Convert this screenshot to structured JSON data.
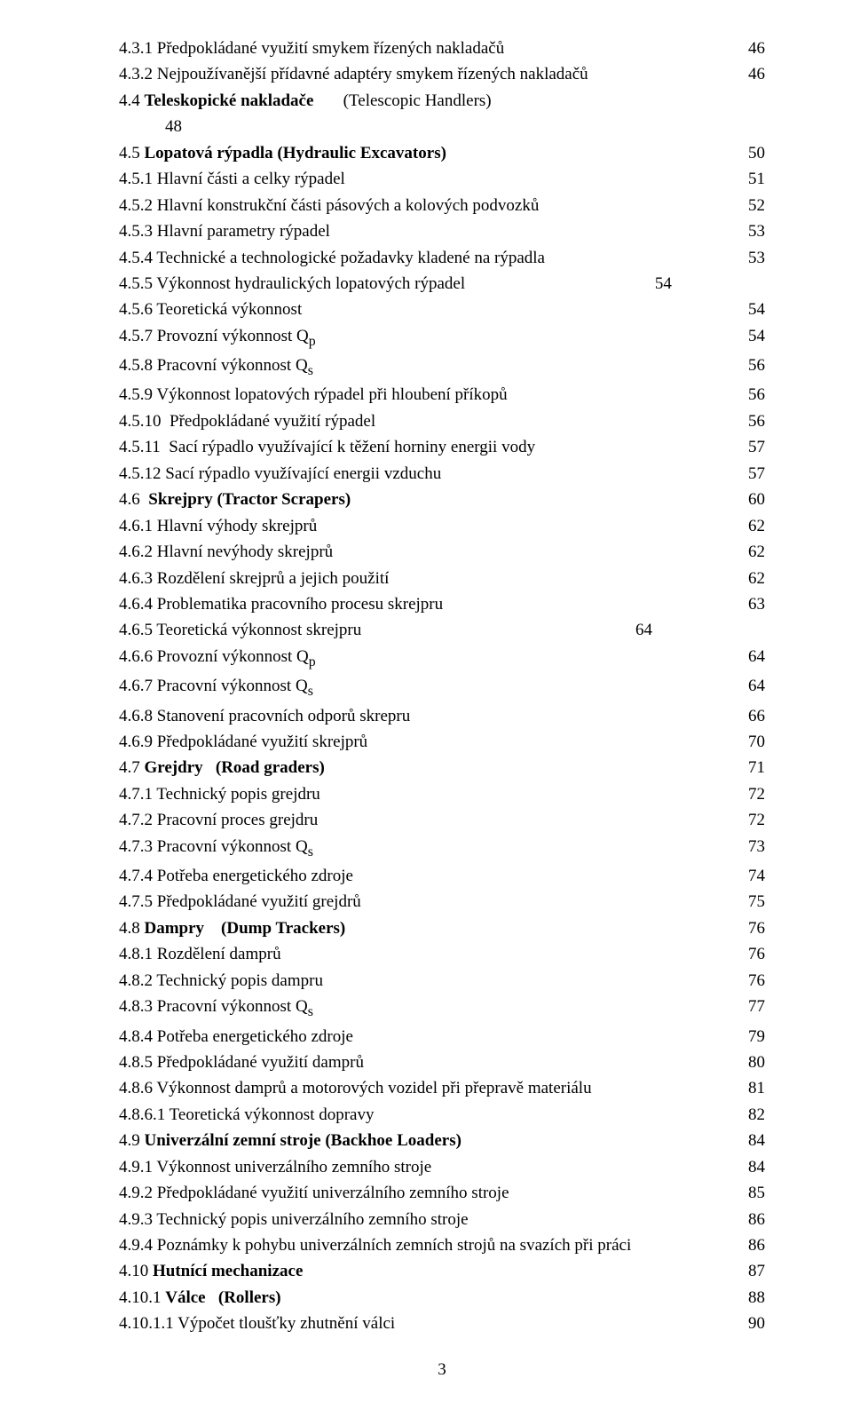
{
  "page_number": "3",
  "toc": [
    {
      "label": "4.3.1 Předpokládané využití smykem řízených nakladačů",
      "page": "46",
      "bold": false
    },
    {
      "label": "4.3.2 Nejpoužívanější přídavné adaptéry smykem řízených nakladačů",
      "page": "46",
      "bold": false
    },
    {
      "label": "4.4 Teleskopické nakladače       (Telescopic Handlers)",
      "page": "",
      "bold": false,
      "boldPart": "Teleskopické nakladače"
    },
    {
      "label": "48",
      "page": "",
      "bold": false,
      "indent": true,
      "noPage": true
    },
    {
      "label": "4.5 Lopatová rýpadla (Hydraulic Excavators)",
      "page": "50",
      "bold": false,
      "boldPart": "Lopatová rýpadla (Hydraulic Excavators)"
    },
    {
      "label": "4.5.1 Hlavní části a celky rýpadel",
      "page": "51",
      "bold": false
    },
    {
      "label": "4.5.2 Hlavní konstrukční části pásových a kolových podvozků",
      "page": "52",
      "bold": false
    },
    {
      "label": "4.5.3 Hlavní parametry rýpadel",
      "page": "53",
      "bold": false
    },
    {
      "label": "4.5.4 Technické a technologické požadavky kladené na rýpadla",
      "page": "53",
      "bold": false
    },
    {
      "label": "4.5.5 Výkonnost hydraulických lopatových rýpadel                                             54",
      "page": "",
      "bold": false,
      "noPage": true
    },
    {
      "label": "4.5.6 Teoretická výkonnost",
      "page": "54",
      "bold": false
    },
    {
      "label": "4.5.7 Provozní výkonnost Qp",
      "page": "54",
      "bold": false,
      "sub": "p"
    },
    {
      "label": "4.5.8 Pracovní výkonnost Qs",
      "page": "56",
      "bold": false,
      "sub": "s"
    },
    {
      "label": "4.5.9 Výkonnost lopatových rýpadel při hloubení příkopů",
      "page": "56",
      "bold": false
    },
    {
      "label": "4.5.10  Předpokládané využití rýpadel",
      "page": "56",
      "bold": false
    },
    {
      "label": "4.5.11  Sací rýpadlo využívající k těžení horniny energii vody",
      "page": "57",
      "bold": false
    },
    {
      "label": "4.5.12 Sací rýpadlo využívající energii vzduchu",
      "page": "57",
      "bold": false
    },
    {
      "label": "4.6  Skrejpry (Tractor Scrapers)",
      "page": "60",
      "bold": false,
      "boldPart": "Skrejpry (Tractor Scrapers)"
    },
    {
      "label": "4.6.1 Hlavní výhody skrejprů",
      "page": "62",
      "bold": false
    },
    {
      "label": "4.6.2 Hlavní nevýhody skrejprů",
      "page": "62",
      "bold": false
    },
    {
      "label": "4.6.3 Rozdělení skrejprů a jejich použití",
      "page": "62",
      "bold": false
    },
    {
      "label": "4.6.4 Problematika pracovního procesu skrejpru",
      "page": "63",
      "bold": false
    },
    {
      "label": "4.6.5 Teoretická výkonnost skrejpru                                                                 64",
      "page": "",
      "bold": false,
      "noPage": true
    },
    {
      "label": "4.6.6 Provozní výkonnost Qp",
      "page": "64",
      "bold": false,
      "sub": "p"
    },
    {
      "label": "4.6.7 Pracovní výkonnost Qs",
      "page": "64",
      "bold": false,
      "sub": "s"
    },
    {
      "label": "4.6.8 Stanovení pracovních odporů skrepru",
      "page": "66",
      "bold": false
    },
    {
      "label": "4.6.9 Předpokládané využití skrejprů",
      "page": "70",
      "bold": false
    },
    {
      "label": "4.7 Grejdry   (Road graders)",
      "page": "71",
      "bold": false,
      "boldPart": "Grejdry   (Road graders)"
    },
    {
      "label": "4.7.1 Technický popis grejdru",
      "page": "72",
      "bold": false
    },
    {
      "label": "4.7.2 Pracovní proces grejdru",
      "page": "72",
      "bold": false
    },
    {
      "label": "4.7.3 Pracovní výkonnost Qs",
      "page": "73",
      "bold": false,
      "sub": "s"
    },
    {
      "label": "4.7.4 Potřeba energetického zdroje",
      "page": "74",
      "bold": false
    },
    {
      "label": "4.7.5 Předpokládané využití grejdrů",
      "page": "75",
      "bold": false
    },
    {
      "label": "4.8 Dampry    (Dump Trackers)",
      "page": "76",
      "bold": false,
      "boldPart": "Dampry    (Dump Trackers)"
    },
    {
      "label": "4.8.1 Rozdělení damprů",
      "page": "76",
      "bold": false
    },
    {
      "label": "4.8.2 Technický popis dampru",
      "page": "76",
      "bold": false
    },
    {
      "label": "4.8.3 Pracovní výkonnost Qs",
      "page": "77",
      "bold": false,
      "sub": "s"
    },
    {
      "label": "4.8.4 Potřeba energetického zdroje",
      "page": "79",
      "bold": false
    },
    {
      "label": "4.8.5 Předpokládané využití damprů",
      "page": "80",
      "bold": false
    },
    {
      "label": "4.8.6 Výkonnost damprů a motorových vozidel při přepravě materiálu",
      "page": "81",
      "bold": false
    },
    {
      "label": "4.8.6.1 Teoretická výkonnost dopravy",
      "page": "82",
      "bold": false
    },
    {
      "label": "4.9 Univerzální zemní stroje (Backhoe Loaders)",
      "page": "84",
      "bold": false,
      "boldPart": "Univerzální zemní stroje (Backhoe Loaders)"
    },
    {
      "label": "4.9.1 Výkonnost univerzálního zemního stroje",
      "page": "84",
      "bold": false
    },
    {
      "label": "4.9.2 Předpokládané využití univerzálního zemního stroje",
      "page": "85",
      "bold": false
    },
    {
      "label": "4.9.3 Technický popis univerzálního zemního stroje",
      "page": "86",
      "bold": false
    },
    {
      "label": "4.9.4 Poznámky k pohybu univerzálních zemních strojů na svazích při práci",
      "page": "86",
      "bold": false
    },
    {
      "label": "4.10 Hutnící mechanizace",
      "page": "87",
      "bold": false,
      "boldPart": "Hutnící mechanizace"
    },
    {
      "label": "4.10.1 Válce   (Rollers)",
      "page": "88",
      "bold": false,
      "boldPart": "Válce   (Rollers)"
    },
    {
      "label": "4.10.1.1 Výpočet tloušťky zhutnění válci",
      "page": "90",
      "bold": false
    }
  ]
}
